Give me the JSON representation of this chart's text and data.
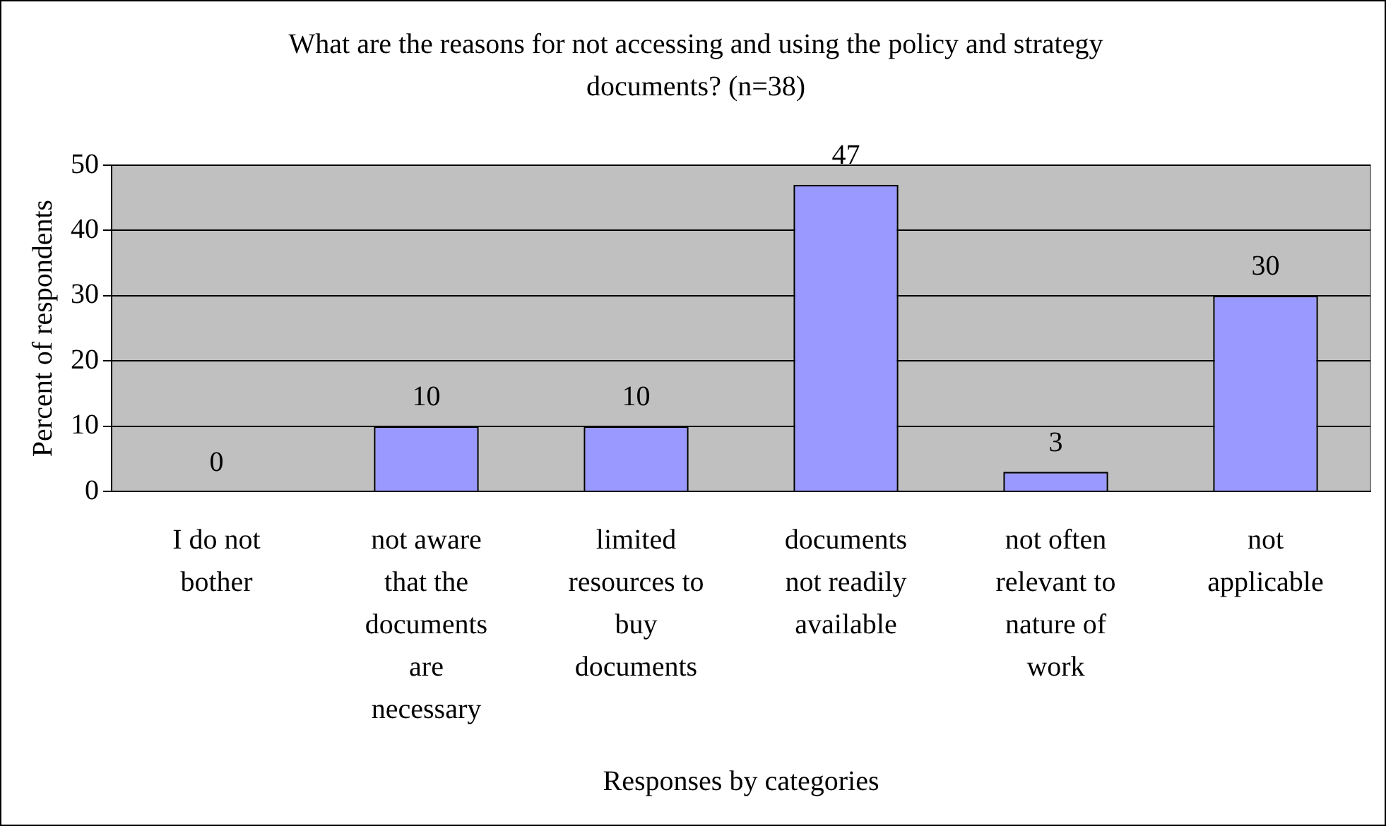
{
  "chart_data": {
    "type": "bar",
    "title": "What are the reasons for not accessing and using the policy and strategy documents? (n=38)",
    "xlabel": "Responses by categories",
    "ylabel": "Percent of respondents",
    "categories": [
      "I do not bother",
      "not aware that the documents are necessary",
      "limited resources to buy documents",
      "documents not readily available",
      "not often relevant to nature of work",
      "not applicable"
    ],
    "values": [
      0,
      10,
      10,
      47,
      3,
      30
    ],
    "color": "#9999ff",
    "ylim": [
      0,
      50
    ],
    "yticks": [
      0,
      10,
      20,
      30,
      40,
      50
    ],
    "grid": "y",
    "legend": false,
    "data_labels": true
  }
}
